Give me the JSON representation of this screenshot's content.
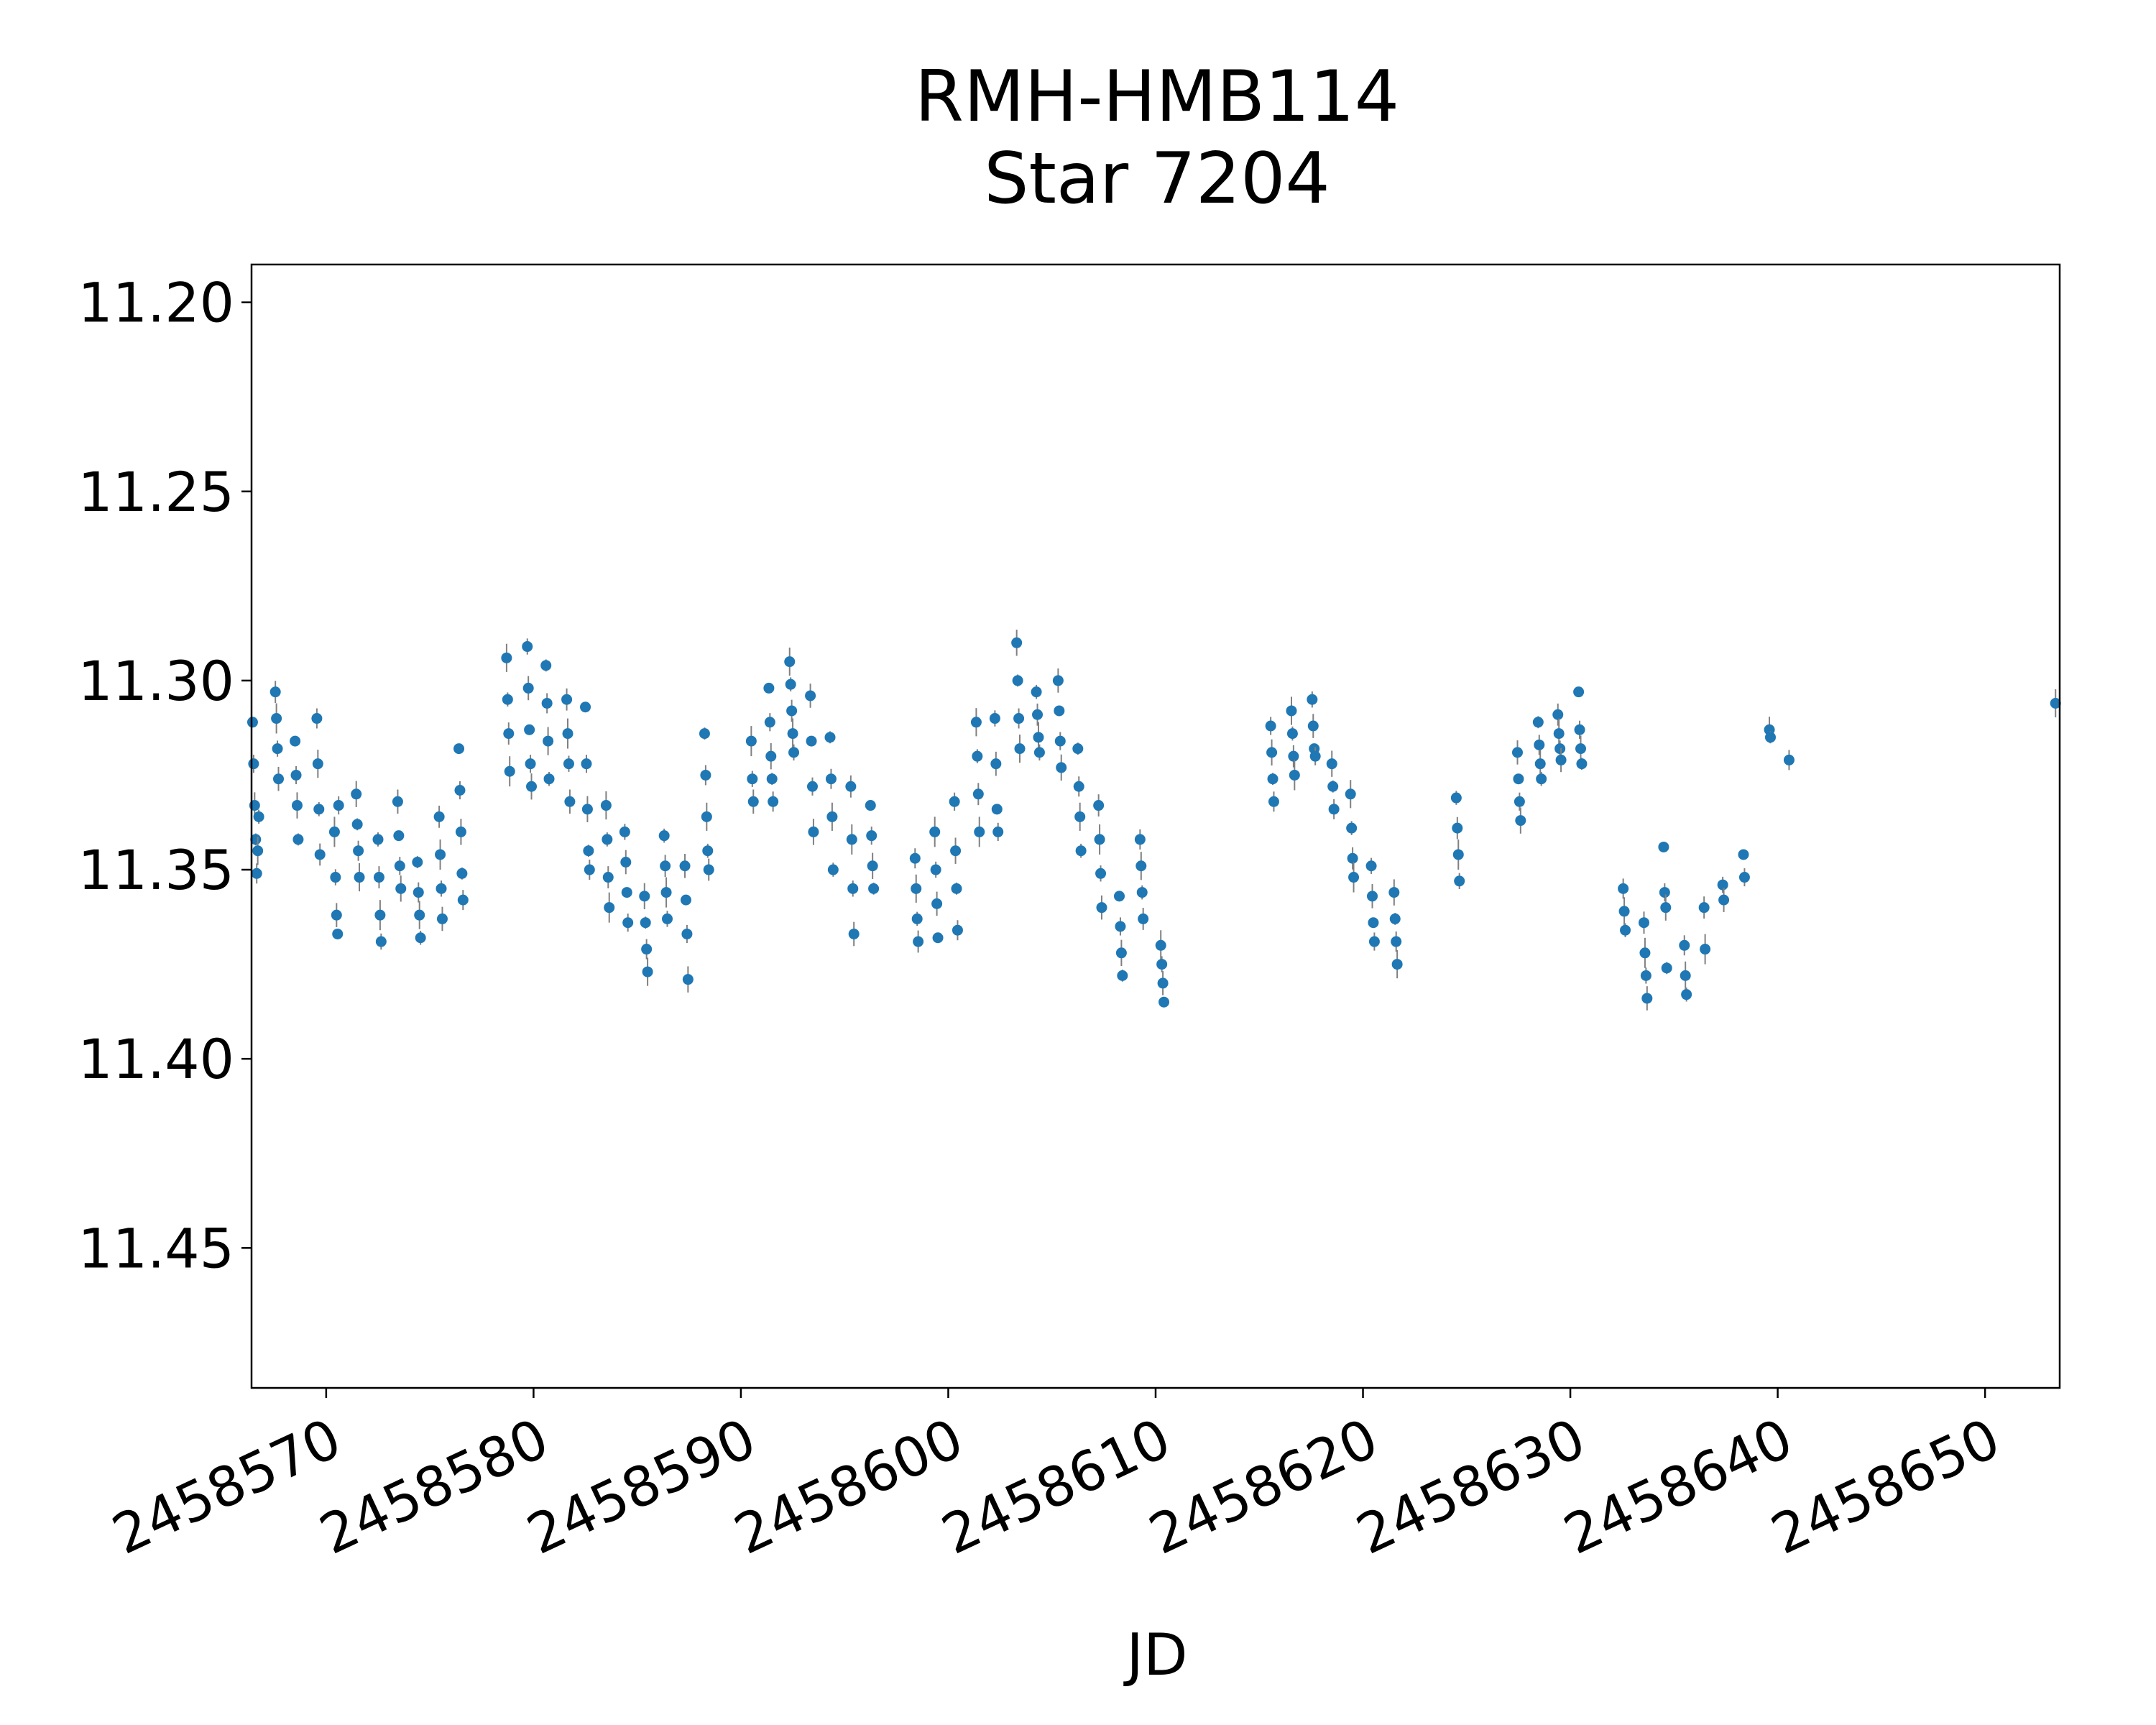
{
  "chart_data": {
    "type": "scatter",
    "title_lines": [
      "RMH-HMB114",
      "Star 7204"
    ],
    "xlabel": "JD",
    "ylabel": "",
    "xlim": [
      2458566.4,
      2458653.6
    ],
    "ylim": [
      11.19,
      11.487
    ],
    "y_inverted": true,
    "x_ticks": [
      2458570,
      2458580,
      2458590,
      2458600,
      2458610,
      2458620,
      2458630,
      2458640,
      2458650
    ],
    "x_tick_labels": [
      "2458570",
      "2458580",
      "2458590",
      "2458600",
      "2458610",
      "2458620",
      "2458630",
      "2458640",
      "2458650"
    ],
    "y_ticks": [
      11.2,
      11.25,
      11.3,
      11.35,
      11.4,
      11.45
    ],
    "y_tick_labels": [
      "11.20",
      "11.25",
      "11.30",
      "11.35",
      "11.40",
      "11.45"
    ],
    "grid": false,
    "marker_color": "#1f77b4",
    "errorbar_color": "#808080",
    "series": [
      {
        "points": [
          [
            2458566.45,
            11.311
          ],
          [
            2458566.5,
            11.322
          ],
          [
            2458566.55,
            11.333
          ],
          [
            2458566.6,
            11.342
          ],
          [
            2458566.65,
            11.351
          ],
          [
            2458566.7,
            11.345
          ],
          [
            2458566.75,
            11.336
          ],
          [
            2458567.55,
            11.303
          ],
          [
            2458567.6,
            11.31
          ],
          [
            2458567.65,
            11.318
          ],
          [
            2458567.7,
            11.326
          ],
          [
            2458568.5,
            11.316
          ],
          [
            2458568.55,
            11.325
          ],
          [
            2458568.6,
            11.333
          ],
          [
            2458568.65,
            11.342
          ],
          [
            2458569.55,
            11.31
          ],
          [
            2458569.6,
            11.322
          ],
          [
            2458569.65,
            11.334
          ],
          [
            2458569.7,
            11.346
          ],
          [
            2458570.4,
            11.34
          ],
          [
            2458570.45,
            11.352
          ],
          [
            2458570.5,
            11.362
          ],
          [
            2458570.55,
            11.367
          ],
          [
            2458570.6,
            11.333
          ],
          [
            2458571.45,
            11.33
          ],
          [
            2458571.5,
            11.338
          ],
          [
            2458571.55,
            11.345
          ],
          [
            2458571.6,
            11.352
          ],
          [
            2458572.5,
            11.342
          ],
          [
            2458572.55,
            11.352
          ],
          [
            2458572.6,
            11.362
          ],
          [
            2458572.65,
            11.369
          ],
          [
            2458573.45,
            11.332
          ],
          [
            2458573.5,
            11.341
          ],
          [
            2458573.55,
            11.349
          ],
          [
            2458573.6,
            11.355
          ],
          [
            2458574.4,
            11.348
          ],
          [
            2458574.45,
            11.356
          ],
          [
            2458574.5,
            11.362
          ],
          [
            2458574.55,
            11.368
          ],
          [
            2458575.45,
            11.336
          ],
          [
            2458575.5,
            11.346
          ],
          [
            2458575.55,
            11.355
          ],
          [
            2458575.6,
            11.363
          ],
          [
            2458576.4,
            11.318
          ],
          [
            2458576.45,
            11.329
          ],
          [
            2458576.5,
            11.34
          ],
          [
            2458576.55,
            11.351
          ],
          [
            2458576.6,
            11.358
          ],
          [
            2458578.7,
            11.294
          ],
          [
            2458578.75,
            11.305
          ],
          [
            2458578.8,
            11.314
          ],
          [
            2458578.85,
            11.324
          ],
          [
            2458579.7,
            11.291
          ],
          [
            2458579.75,
            11.302
          ],
          [
            2458579.8,
            11.313
          ],
          [
            2458579.85,
            11.322
          ],
          [
            2458579.9,
            11.328
          ],
          [
            2458580.6,
            11.296
          ],
          [
            2458580.65,
            11.306
          ],
          [
            2458580.7,
            11.316
          ],
          [
            2458580.75,
            11.326
          ],
          [
            2458581.6,
            11.305
          ],
          [
            2458581.65,
            11.314
          ],
          [
            2458581.7,
            11.322
          ],
          [
            2458581.75,
            11.332
          ],
          [
            2458582.5,
            11.307
          ],
          [
            2458582.55,
            11.322
          ],
          [
            2458582.6,
            11.334
          ],
          [
            2458582.65,
            11.345
          ],
          [
            2458582.7,
            11.35
          ],
          [
            2458583.5,
            11.333
          ],
          [
            2458583.55,
            11.342
          ],
          [
            2458583.6,
            11.352
          ],
          [
            2458583.65,
            11.36
          ],
          [
            2458584.4,
            11.34
          ],
          [
            2458584.45,
            11.348
          ],
          [
            2458584.5,
            11.356
          ],
          [
            2458584.55,
            11.364
          ],
          [
            2458585.35,
            11.357
          ],
          [
            2458585.4,
            11.364
          ],
          [
            2458585.45,
            11.371
          ],
          [
            2458585.5,
            11.377
          ],
          [
            2458586.3,
            11.341
          ],
          [
            2458586.35,
            11.349
          ],
          [
            2458586.4,
            11.356
          ],
          [
            2458586.45,
            11.363
          ],
          [
            2458587.3,
            11.349
          ],
          [
            2458587.35,
            11.358
          ],
          [
            2458587.4,
            11.367
          ],
          [
            2458587.45,
            11.379
          ],
          [
            2458588.25,
            11.314
          ],
          [
            2458588.3,
            11.325
          ],
          [
            2458588.35,
            11.336
          ],
          [
            2458588.4,
            11.345
          ],
          [
            2458588.45,
            11.35
          ],
          [
            2458590.5,
            11.316
          ],
          [
            2458590.55,
            11.326
          ],
          [
            2458590.6,
            11.332
          ],
          [
            2458591.35,
            11.302
          ],
          [
            2458591.4,
            11.311
          ],
          [
            2458591.45,
            11.32
          ],
          [
            2458591.5,
            11.326
          ],
          [
            2458591.55,
            11.332
          ],
          [
            2458592.35,
            11.295
          ],
          [
            2458592.4,
            11.301
          ],
          [
            2458592.45,
            11.308
          ],
          [
            2458592.5,
            11.314
          ],
          [
            2458592.55,
            11.319
          ],
          [
            2458593.35,
            11.304
          ],
          [
            2458593.4,
            11.316
          ],
          [
            2458593.45,
            11.328
          ],
          [
            2458593.5,
            11.34
          ],
          [
            2458594.3,
            11.315
          ],
          [
            2458594.35,
            11.326
          ],
          [
            2458594.4,
            11.336
          ],
          [
            2458594.45,
            11.35
          ],
          [
            2458595.3,
            11.328
          ],
          [
            2458595.35,
            11.342
          ],
          [
            2458595.4,
            11.355
          ],
          [
            2458595.45,
            11.367
          ],
          [
            2458596.25,
            11.333
          ],
          [
            2458596.3,
            11.341
          ],
          [
            2458596.35,
            11.349
          ],
          [
            2458596.4,
            11.355
          ],
          [
            2458598.4,
            11.347
          ],
          [
            2458598.45,
            11.355
          ],
          [
            2458598.5,
            11.363
          ],
          [
            2458598.55,
            11.369
          ],
          [
            2458599.35,
            11.34
          ],
          [
            2458599.4,
            11.35
          ],
          [
            2458599.45,
            11.359
          ],
          [
            2458599.5,
            11.368
          ],
          [
            2458600.3,
            11.332
          ],
          [
            2458600.35,
            11.345
          ],
          [
            2458600.4,
            11.355
          ],
          [
            2458600.45,
            11.366
          ],
          [
            2458601.35,
            11.311
          ],
          [
            2458601.4,
            11.32
          ],
          [
            2458601.45,
            11.33
          ],
          [
            2458601.5,
            11.34
          ],
          [
            2458602.25,
            11.31
          ],
          [
            2458602.3,
            11.322
          ],
          [
            2458602.35,
            11.334
          ],
          [
            2458602.4,
            11.34
          ],
          [
            2458603.3,
            11.29
          ],
          [
            2458603.35,
            11.3
          ],
          [
            2458603.4,
            11.31
          ],
          [
            2458603.45,
            11.318
          ],
          [
            2458604.25,
            11.303
          ],
          [
            2458604.3,
            11.309
          ],
          [
            2458604.35,
            11.315
          ],
          [
            2458604.4,
            11.319
          ],
          [
            2458605.3,
            11.3
          ],
          [
            2458605.35,
            11.308
          ],
          [
            2458605.4,
            11.316
          ],
          [
            2458605.45,
            11.323
          ],
          [
            2458606.25,
            11.318
          ],
          [
            2458606.3,
            11.328
          ],
          [
            2458606.35,
            11.336
          ],
          [
            2458606.4,
            11.345
          ],
          [
            2458607.25,
            11.333
          ],
          [
            2458607.3,
            11.342
          ],
          [
            2458607.35,
            11.351
          ],
          [
            2458607.4,
            11.36
          ],
          [
            2458608.25,
            11.357
          ],
          [
            2458608.3,
            11.365
          ],
          [
            2458608.35,
            11.372
          ],
          [
            2458608.4,
            11.378
          ],
          [
            2458609.25,
            11.342
          ],
          [
            2458609.3,
            11.349
          ],
          [
            2458609.35,
            11.356
          ],
          [
            2458609.4,
            11.363
          ],
          [
            2458610.25,
            11.37
          ],
          [
            2458610.3,
            11.375
          ],
          [
            2458610.35,
            11.38
          ],
          [
            2458610.4,
            11.385
          ],
          [
            2458615.55,
            11.312
          ],
          [
            2458615.6,
            11.319
          ],
          [
            2458615.65,
            11.326
          ],
          [
            2458615.7,
            11.332
          ],
          [
            2458616.55,
            11.308
          ],
          [
            2458616.6,
            11.314
          ],
          [
            2458616.65,
            11.32
          ],
          [
            2458616.7,
            11.325
          ],
          [
            2458617.55,
            11.305
          ],
          [
            2458617.6,
            11.312
          ],
          [
            2458617.65,
            11.318
          ],
          [
            2458617.7,
            11.32
          ],
          [
            2458618.5,
            11.322
          ],
          [
            2458618.55,
            11.328
          ],
          [
            2458618.6,
            11.334
          ],
          [
            2458619.4,
            11.33
          ],
          [
            2458619.45,
            11.339
          ],
          [
            2458619.5,
            11.347
          ],
          [
            2458619.55,
            11.352
          ],
          [
            2458620.4,
            11.349
          ],
          [
            2458620.45,
            11.357
          ],
          [
            2458620.5,
            11.364
          ],
          [
            2458620.55,
            11.369
          ],
          [
            2458621.5,
            11.356
          ],
          [
            2458621.55,
            11.363
          ],
          [
            2458621.6,
            11.369
          ],
          [
            2458621.65,
            11.375
          ],
          [
            2458624.5,
            11.331
          ],
          [
            2458624.55,
            11.339
          ],
          [
            2458624.6,
            11.346
          ],
          [
            2458624.65,
            11.353
          ],
          [
            2458627.45,
            11.319
          ],
          [
            2458627.5,
            11.326
          ],
          [
            2458627.55,
            11.332
          ],
          [
            2458627.6,
            11.337
          ],
          [
            2458628.45,
            11.311
          ],
          [
            2458628.5,
            11.317
          ],
          [
            2458628.55,
            11.322
          ],
          [
            2458628.6,
            11.326
          ],
          [
            2458629.4,
            11.309
          ],
          [
            2458629.45,
            11.314
          ],
          [
            2458629.5,
            11.318
          ],
          [
            2458629.55,
            11.321
          ],
          [
            2458630.4,
            11.303
          ],
          [
            2458630.45,
            11.313
          ],
          [
            2458630.5,
            11.318
          ],
          [
            2458630.55,
            11.322
          ],
          [
            2458632.55,
            11.355
          ],
          [
            2458632.6,
            11.361
          ],
          [
            2458632.65,
            11.366
          ],
          [
            2458633.55,
            11.364
          ],
          [
            2458633.6,
            11.372
          ],
          [
            2458633.65,
            11.378
          ],
          [
            2458633.7,
            11.384
          ],
          [
            2458634.5,
            11.344
          ],
          [
            2458634.55,
            11.356
          ],
          [
            2458634.6,
            11.36
          ],
          [
            2458634.65,
            11.376
          ],
          [
            2458635.5,
            11.37
          ],
          [
            2458635.55,
            11.378
          ],
          [
            2458635.6,
            11.383
          ],
          [
            2458636.45,
            11.36
          ],
          [
            2458636.5,
            11.371
          ],
          [
            2458637.35,
            11.354
          ],
          [
            2458637.4,
            11.358
          ],
          [
            2458638.35,
            11.346
          ],
          [
            2458638.4,
            11.352
          ],
          [
            2458639.6,
            11.313
          ],
          [
            2458639.65,
            11.315
          ],
          [
            2458640.55,
            11.321
          ],
          [
            2458653.4,
            11.306
          ]
        ]
      }
    ]
  }
}
